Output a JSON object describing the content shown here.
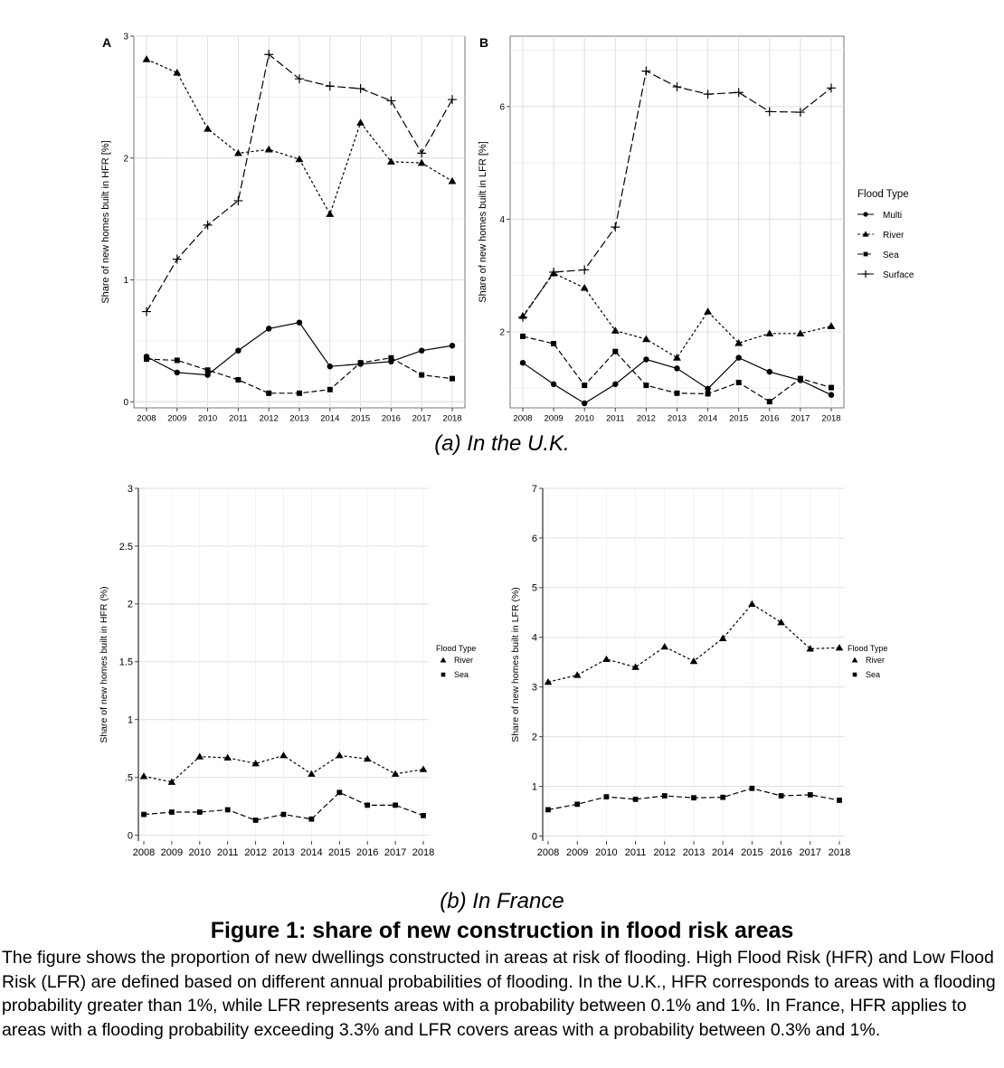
{
  "captions": {
    "uk": "(a) In the U.K.",
    "france": "(b) In France",
    "figure_title": "Figure 1: share of new construction in flood risk areas",
    "description": "The figure shows the proportion of new dwellings constructed in areas at risk of flooding. High Flood Risk (HFR) and Low Flood Risk (LFR) are defined based on different annual probabilities of flooding. In the U.K., HFR corresponds to areas with a flooding probability greater than 1%, while LFR represents areas with a probability between 0.1% and 1%. In France, HFR applies to areas with a flooding probability exceeding 3.3% and LFR covers areas with a probability between 0.3% and 1%."
  },
  "chart_data": [
    {
      "id": "uk_hfr",
      "type": "line",
      "panel_label": "A",
      "ylabel": "Share of new homes built in HFR [%]",
      "x": [
        2008,
        2009,
        2010,
        2011,
        2012,
        2013,
        2014,
        2015,
        2016,
        2017,
        2018
      ],
      "ylim": [
        -0.05,
        3.0
      ],
      "yticks": [
        0,
        1,
        2,
        3
      ],
      "ytick_labels": [
        "0",
        "1",
        "2",
        "3"
      ],
      "grid": true,
      "series": [
        {
          "name": "Multi",
          "marker": "circle",
          "dash": "solid",
          "values": [
            0.37,
            0.24,
            0.22,
            0.42,
            0.6,
            0.65,
            0.29,
            0.31,
            0.33,
            0.42,
            0.46
          ]
        },
        {
          "name": "River",
          "marker": "triangle",
          "dash": "dotted",
          "values": [
            2.81,
            2.7,
            2.24,
            2.04,
            2.07,
            1.99,
            1.54,
            2.29,
            1.97,
            1.96,
            1.81
          ]
        },
        {
          "name": "Sea",
          "marker": "square",
          "dash": "dashed",
          "values": [
            0.35,
            0.34,
            0.26,
            0.18,
            0.07,
            0.07,
            0.1,
            0.32,
            0.36,
            0.22,
            0.19
          ]
        },
        {
          "name": "Surface",
          "marker": "plus",
          "dash": "longdash",
          "values": [
            0.74,
            1.17,
            1.45,
            1.65,
            2.85,
            2.65,
            2.59,
            2.57,
            2.47,
            2.04,
            2.48
          ]
        }
      ]
    },
    {
      "id": "uk_lfr",
      "type": "line",
      "panel_label": "B",
      "ylabel": "Share of new homes built in LFR [%]",
      "x": [
        2008,
        2009,
        2010,
        2011,
        2012,
        2013,
        2014,
        2015,
        2016,
        2017,
        2018
      ],
      "ylim": [
        0.65,
        7.25
      ],
      "yticks": [
        2,
        4,
        6
      ],
      "ytick_labels": [
        "2",
        "4",
        "6"
      ],
      "minor_grid": [
        1,
        3,
        5,
        7
      ],
      "grid": true,
      "legend": {
        "title": "Flood Type",
        "placement": "right"
      },
      "series": [
        {
          "name": "Multi",
          "marker": "circle",
          "dash": "solid",
          "values": [
            1.45,
            1.07,
            0.73,
            1.07,
            1.51,
            1.35,
            0.99,
            1.54,
            1.29,
            1.14,
            0.88
          ]
        },
        {
          "name": "River",
          "marker": "triangle",
          "dash": "dotted",
          "values": [
            2.28,
            3.04,
            2.78,
            2.02,
            1.87,
            1.54,
            2.36,
            1.8,
            1.97,
            1.97,
            2.1
          ]
        },
        {
          "name": "Sea",
          "marker": "square",
          "dash": "dashed",
          "values": [
            1.92,
            1.79,
            1.05,
            1.65,
            1.05,
            0.91,
            0.9,
            1.1,
            0.76,
            1.17,
            1.01
          ]
        },
        {
          "name": "Surface",
          "marker": "plus",
          "dash": "longdash",
          "values": [
            2.26,
            3.06,
            3.1,
            3.86,
            6.63,
            6.35,
            6.22,
            6.25,
            5.91,
            5.9,
            6.33
          ]
        }
      ]
    },
    {
      "id": "fr_hfr",
      "type": "line",
      "ylabel": "Share of new homes built in HFR (%)",
      "x": [
        2008,
        2009,
        2010,
        2011,
        2012,
        2013,
        2014,
        2015,
        2016,
        2017,
        2018
      ],
      "ylim": [
        -0.05,
        3.0
      ],
      "yticks": [
        0,
        0.5,
        1,
        1.5,
        2,
        2.5,
        3
      ],
      "ytick_labels": [
        "0",
        ".5",
        "1",
        "1.5",
        "2",
        "2.5",
        "3"
      ],
      "grid": true,
      "legend": {
        "title": "Flood Type",
        "placement": "right"
      },
      "series": [
        {
          "name": "River",
          "marker": "triangle",
          "dash": "dotted",
          "values": [
            0.51,
            0.46,
            0.68,
            0.67,
            0.62,
            0.69,
            0.53,
            0.69,
            0.66,
            0.53,
            0.57
          ]
        },
        {
          "name": "Sea",
          "marker": "square",
          "dash": "dashed",
          "values": [
            0.18,
            0.2,
            0.2,
            0.22,
            0.13,
            0.18,
            0.14,
            0.37,
            0.26,
            0.26,
            0.17
          ]
        }
      ]
    },
    {
      "id": "fr_lfr",
      "type": "line",
      "ylabel": "Share of new homes built in LFR (%)",
      "x": [
        2008,
        2009,
        2010,
        2011,
        2012,
        2013,
        2014,
        2015,
        2016,
        2017,
        2018
      ],
      "ylim": [
        -0.1,
        7.0
      ],
      "yticks": [
        0,
        1,
        2,
        3,
        4,
        5,
        6,
        7
      ],
      "ytick_labels": [
        "0",
        "1",
        "2",
        "3",
        "4",
        "5",
        "6",
        "7"
      ],
      "grid": true,
      "legend": {
        "title": "Flood Type",
        "placement": "right"
      },
      "series": [
        {
          "name": "River",
          "marker": "triangle",
          "dash": "dotted",
          "values": [
            3.1,
            3.24,
            3.56,
            3.4,
            3.81,
            3.52,
            3.98,
            4.67,
            4.3,
            3.77,
            3.79
          ]
        },
        {
          "name": "Sea",
          "marker": "square",
          "dash": "dashed",
          "values": [
            0.53,
            0.64,
            0.79,
            0.74,
            0.81,
            0.77,
            0.78,
            0.96,
            0.81,
            0.83,
            0.72
          ]
        }
      ]
    }
  ]
}
